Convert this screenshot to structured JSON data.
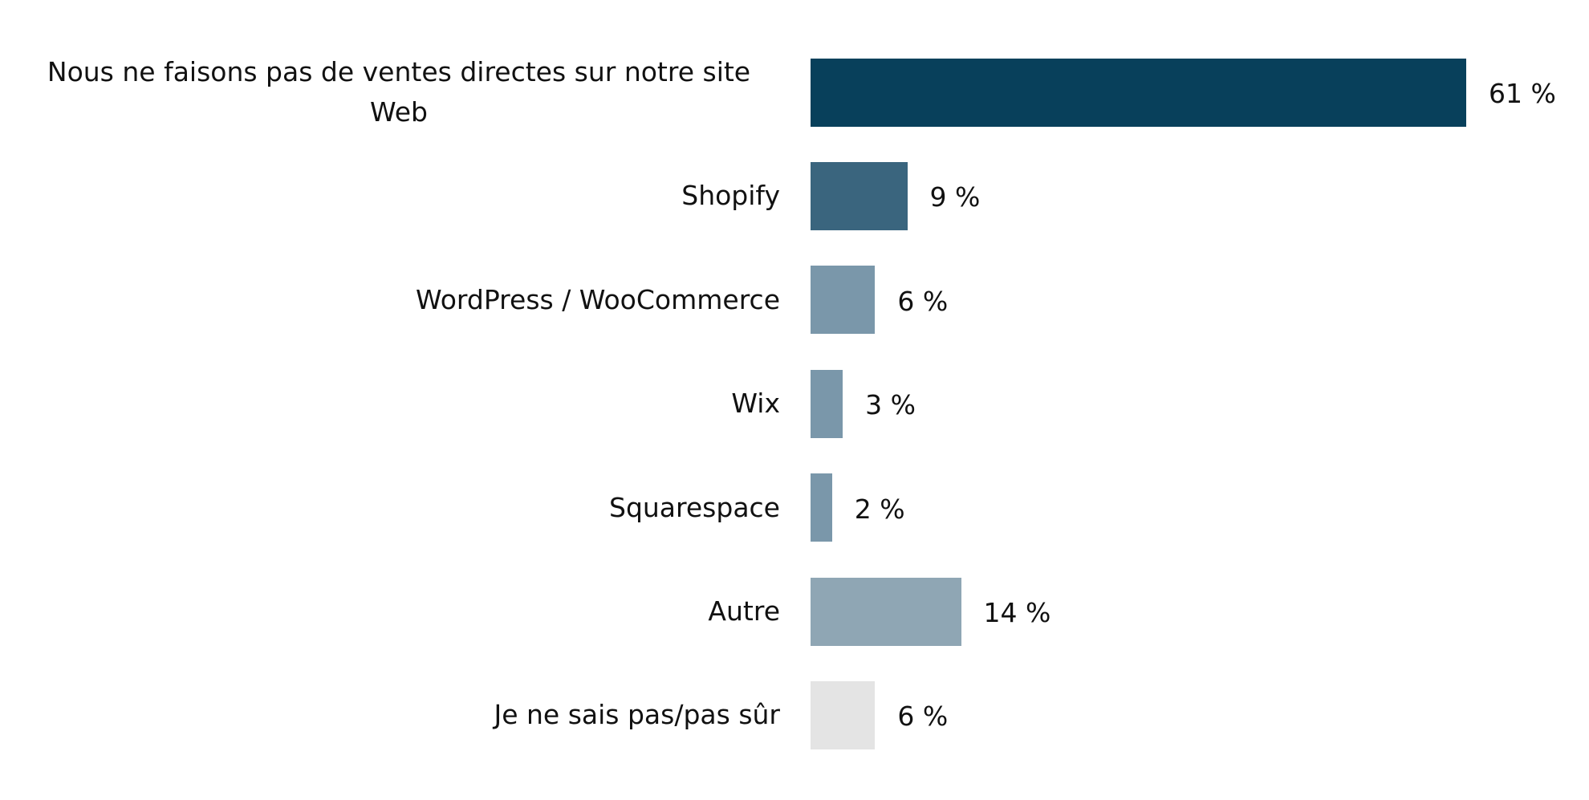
{
  "chart_data": {
    "type": "bar",
    "orientation": "horizontal",
    "categories": [
      "Nous ne faisons pas de ventes directes sur notre site Web",
      "Shopify",
      "WordPress / WooCommerce",
      "Wix",
      "Squarespace",
      "Autre",
      "Je ne sais pas/pas sûr"
    ],
    "values": [
      61,
      9,
      6,
      3,
      2,
      14,
      6
    ],
    "value_labels": [
      "61 %",
      "9 %",
      "6 %",
      "3 %",
      "2 %",
      "14 %",
      "6 %"
    ],
    "colors": [
      "#08405b",
      "#3a657e",
      "#7a97aa",
      "#7a97aa",
      "#7a97aa",
      "#8fa6b4",
      "#e4e4e4"
    ]
  }
}
